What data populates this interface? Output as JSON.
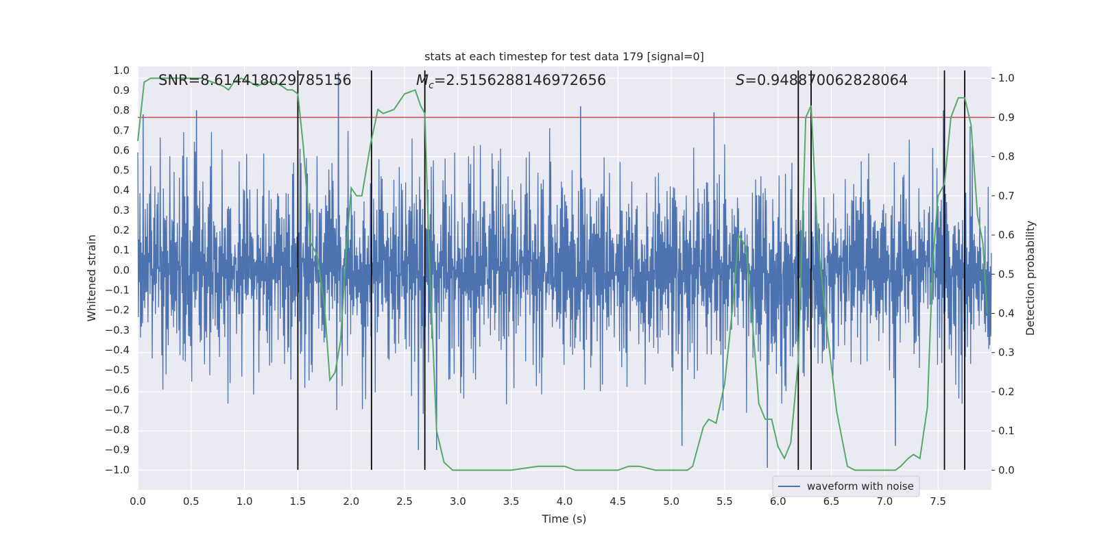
{
  "chart_data": {
    "type": "line",
    "title": "stats at each timestep for test data 179 [signal=0]",
    "xlabel": "Time (s)",
    "ylabel_left": "Whitened strain",
    "ylabel_right": "Detection probability",
    "xlim": [
      0.0,
      8.0
    ],
    "ylim_left": [
      -1.1,
      1.02
    ],
    "ylim_right": [
      -0.05,
      1.03
    ],
    "grid": true,
    "x_ticks": [
      "0.0",
      "0.5",
      "1.0",
      "1.5",
      "2.0",
      "2.5",
      "3.0",
      "3.5",
      "4.0",
      "4.5",
      "5.0",
      "5.5",
      "6.0",
      "6.5",
      "7.0",
      "7.5"
    ],
    "y_ticks_left": [
      "1.0",
      "0.9",
      "0.8",
      "0.7",
      "0.6",
      "0.5",
      "0.4",
      "0.3",
      "0.2",
      "0.1",
      "0.0",
      "−0.1",
      "−0.2",
      "−0.3",
      "−0.4",
      "−0.5",
      "−0.6",
      "−0.7",
      "−0.8",
      "−0.9",
      "−1.0"
    ],
    "y_ticks_right": [
      "1.0",
      "0.9",
      "0.8",
      "0.7",
      "0.6",
      "0.5",
      "0.4",
      "0.3",
      "0.2",
      "0.1",
      "0.0"
    ],
    "annotations": {
      "snr": "SNR=8.614418029785156",
      "mc_symbol": "M",
      "mc_sub": "c",
      "mc_value": "=2.5156288146972656",
      "s_symbol": "S",
      "s_value": "=0.948870062828064"
    },
    "threshold": {
      "value": 0.9,
      "axis": "right",
      "color": "#c44e52"
    },
    "vertical_lines_s": [
      1.5,
      2.19,
      2.69,
      6.19,
      6.31,
      7.56,
      7.75
    ],
    "series": [
      {
        "name": "waveform with noise",
        "axis": "left",
        "color": "#4c72b0",
        "description": "whitened strain noise, approx. amplitude ±0.35 with spikes to ±1.0",
        "notable_peaks": [
          {
            "x": 0.05,
            "y": 0.78
          },
          {
            "x": 0.55,
            "y": 0.8
          },
          {
            "x": 1.88,
            "y": 0.99
          },
          {
            "x": 4.15,
            "y": 0.82
          },
          {
            "x": 5.4,
            "y": 0.79
          },
          {
            "x": 7.55,
            "y": 0.8
          },
          {
            "x": 5.9,
            "y": -0.99
          },
          {
            "x": 2.63,
            "y": -0.9
          },
          {
            "x": 2.8,
            "y": -0.9
          },
          {
            "x": 7.1,
            "y": -0.88
          },
          {
            "x": 5.1,
            "y": -0.88
          }
        ]
      },
      {
        "name": "",
        "axis": "right",
        "color": "#55a868",
        "points": [
          [
            0.0,
            0.84
          ],
          [
            0.06,
            0.99
          ],
          [
            0.12,
            1.0
          ],
          [
            0.3,
            1.0
          ],
          [
            0.6,
            1.0
          ],
          [
            0.7,
            0.99
          ],
          [
            0.8,
            0.98
          ],
          [
            0.85,
            0.97
          ],
          [
            0.9,
            0.99
          ],
          [
            0.97,
            1.0
          ],
          [
            1.05,
            0.99
          ],
          [
            1.12,
            0.98
          ],
          [
            1.2,
            0.99
          ],
          [
            1.28,
            0.99
          ],
          [
            1.35,
            0.98
          ],
          [
            1.4,
            0.97
          ],
          [
            1.45,
            0.97
          ],
          [
            1.5,
            0.96
          ],
          [
            1.55,
            0.83
          ],
          [
            1.62,
            0.58
          ],
          [
            1.68,
            0.55
          ],
          [
            1.75,
            0.42
          ],
          [
            1.8,
            0.23
          ],
          [
            1.85,
            0.25
          ],
          [
            1.9,
            0.33
          ],
          [
            1.95,
            0.55
          ],
          [
            2.0,
            0.72
          ],
          [
            2.05,
            0.7
          ],
          [
            2.1,
            0.7
          ],
          [
            2.18,
            0.83
          ],
          [
            2.25,
            0.92
          ],
          [
            2.3,
            0.91
          ],
          [
            2.4,
            0.92
          ],
          [
            2.5,
            0.96
          ],
          [
            2.6,
            0.97
          ],
          [
            2.65,
            0.93
          ],
          [
            2.69,
            0.91
          ],
          [
            2.73,
            0.55
          ],
          [
            2.8,
            0.1
          ],
          [
            2.87,
            0.02
          ],
          [
            2.95,
            0.0
          ],
          [
            3.05,
            0.0
          ],
          [
            3.2,
            0.0
          ],
          [
            3.5,
            0.0
          ],
          [
            3.75,
            0.01
          ],
          [
            4.0,
            0.01
          ],
          [
            4.1,
            0.0
          ],
          [
            4.5,
            0.0
          ],
          [
            4.6,
            0.01
          ],
          [
            4.7,
            0.01
          ],
          [
            4.85,
            0.0
          ],
          [
            5.0,
            0.0
          ],
          [
            5.15,
            0.0
          ],
          [
            5.2,
            0.01
          ],
          [
            5.25,
            0.06
          ],
          [
            5.3,
            0.11
          ],
          [
            5.35,
            0.13
          ],
          [
            5.42,
            0.12
          ],
          [
            5.5,
            0.22
          ],
          [
            5.58,
            0.43
          ],
          [
            5.63,
            0.6
          ],
          [
            5.7,
            0.57
          ],
          [
            5.76,
            0.38
          ],
          [
            5.82,
            0.17
          ],
          [
            5.88,
            0.13
          ],
          [
            5.94,
            0.13
          ],
          [
            6.0,
            0.06
          ],
          [
            6.06,
            0.03
          ],
          [
            6.12,
            0.07
          ],
          [
            6.19,
            0.28
          ],
          [
            6.26,
            0.9
          ],
          [
            6.31,
            0.93
          ],
          [
            6.37,
            0.6
          ],
          [
            6.45,
            0.38
          ],
          [
            6.55,
            0.15
          ],
          [
            6.65,
            0.01
          ],
          [
            6.72,
            0.0
          ],
          [
            6.85,
            0.0
          ],
          [
            7.0,
            0.0
          ],
          [
            7.1,
            0.0
          ],
          [
            7.15,
            0.01
          ],
          [
            7.22,
            0.03
          ],
          [
            7.27,
            0.04
          ],
          [
            7.33,
            0.03
          ],
          [
            7.4,
            0.16
          ],
          [
            7.45,
            0.53
          ],
          [
            7.5,
            0.7
          ],
          [
            7.56,
            0.73
          ],
          [
            7.62,
            0.9
          ],
          [
            7.69,
            0.95
          ],
          [
            7.75,
            0.95
          ],
          [
            7.81,
            0.88
          ],
          [
            7.87,
            0.65
          ],
          [
            7.92,
            0.58
          ],
          [
            7.96,
            0.4
          ]
        ]
      }
    ],
    "legend": {
      "placement": "lower right",
      "entries": [
        "waveform with noise"
      ]
    }
  }
}
